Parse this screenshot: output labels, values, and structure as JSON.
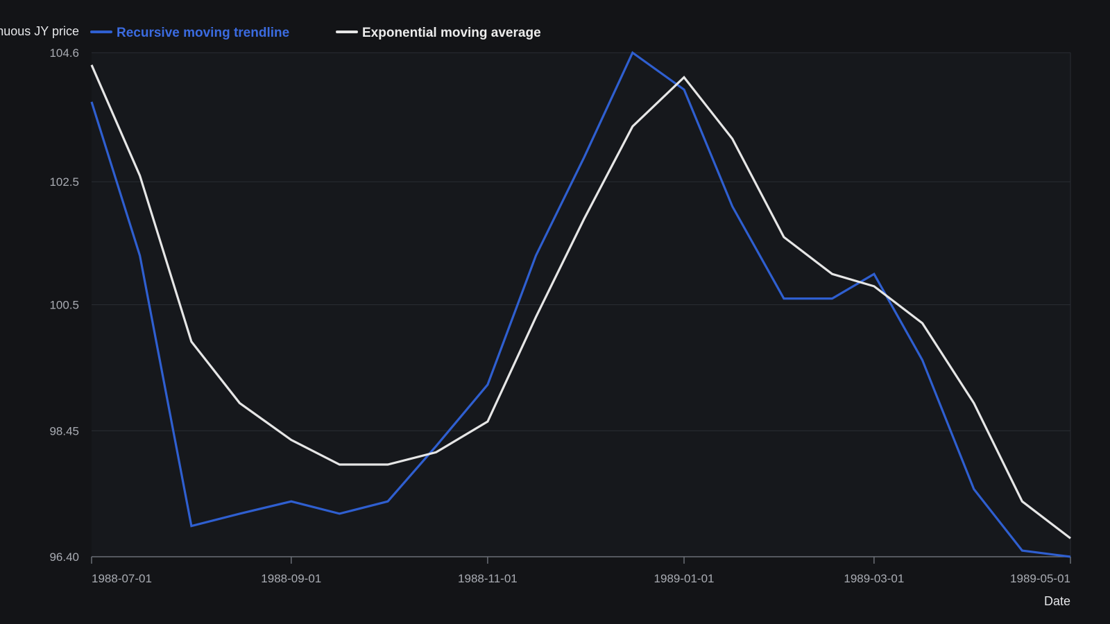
{
  "chart_data": {
    "type": "line",
    "title": "",
    "xlabel": "Date",
    "ylabel": "Continuous JY price",
    "ylim": [
      96.4,
      104.6
    ],
    "yticks": [
      "96.40",
      "98.45",
      "100.5",
      "102.5",
      "104.6"
    ],
    "xlim": [
      "1988-07-01",
      "1989-05-01"
    ],
    "xticks": [
      "1988-07-01",
      "1988-09-01",
      "1988-11-01",
      "1989-01-01",
      "1989-03-01",
      "1989-05-01"
    ],
    "grid": "horizontal",
    "legend_position": "top",
    "colors": {
      "background": "#131417",
      "plot_background": "#16181c",
      "grid": "#2a2d33",
      "axis": "#6b6f77",
      "tick_text": "#a9acb3",
      "title_text": "#e6e7ea"
    },
    "x": [
      "1988-07-01",
      "1988-07-16",
      "1988-08-01",
      "1988-08-16",
      "1988-09-01",
      "1988-09-16",
      "1988-10-01",
      "1988-10-16",
      "1988-11-01",
      "1988-11-16",
      "1988-12-01",
      "1988-12-16",
      "1989-01-01",
      "1989-01-16",
      "1989-02-01",
      "1989-02-16",
      "1989-03-01",
      "1989-03-16",
      "1989-04-01",
      "1989-04-16",
      "1989-05-01"
    ],
    "series": [
      {
        "name": "Recursive moving trendline",
        "color": "#2f5fd0",
        "values": [
          103.8,
          101.3,
          96.9,
          97.1,
          97.3,
          97.1,
          97.3,
          98.2,
          99.2,
          101.3,
          102.9,
          104.6,
          104.0,
          102.1,
          100.6,
          100.6,
          101.0,
          99.6,
          97.5,
          96.5,
          96.4
        ]
      },
      {
        "name": "Exponential moving average",
        "color": "#e6e6e6",
        "values": [
          104.4,
          102.6,
          99.9,
          98.9,
          98.3,
          97.9,
          97.9,
          98.1,
          98.6,
          100.3,
          101.9,
          103.4,
          104.2,
          103.2,
          101.6,
          101.0,
          100.8,
          100.2,
          98.9,
          97.3,
          96.7
        ]
      }
    ]
  }
}
